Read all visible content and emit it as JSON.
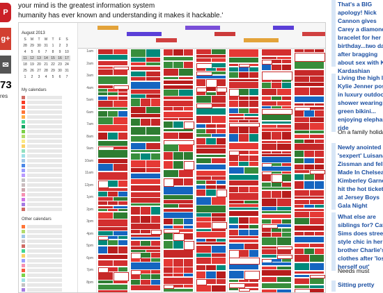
{
  "share": {
    "pin_label": "P",
    "gplus_label": "g+",
    "mail_label": "✉",
    "count": "73",
    "count_label": "res"
  },
  "article": {
    "quote_line1": "your mind is the greatest information system",
    "quote_line2": "humanity has ever known and understanding it makes it hackable.'"
  },
  "calendar": {
    "month_title": "August 2013",
    "weekdays": [
      "S",
      "M",
      "T",
      "W",
      "T",
      "F",
      "S"
    ],
    "weeks": [
      [
        "28",
        "29",
        "30",
        "31",
        "1",
        "2",
        "3"
      ],
      [
        "4",
        "5",
        "6",
        "7",
        "8",
        "9",
        "10"
      ],
      [
        "11",
        "12",
        "13",
        "14",
        "15",
        "16",
        "17"
      ],
      [
        "18",
        "19",
        "20",
        "21",
        "22",
        "23",
        "24"
      ],
      [
        "25",
        "26",
        "27",
        "28",
        "29",
        "30",
        "31"
      ],
      [
        "1",
        "2",
        "3",
        "4",
        "5",
        "6",
        "7"
      ]
    ],
    "my_calendars_label": "My calendars",
    "other_calendars_label": "Other calendars",
    "times": [
      "1am",
      "2am",
      "3am",
      "4am",
      "5am",
      "6am",
      "7am",
      "8am",
      "9am",
      "10am",
      "11am",
      "12pm",
      "1pm",
      "2pm",
      "3pm",
      "4pm",
      "5pm",
      "6pm",
      "7pm",
      "8pm"
    ],
    "calendar_colors": [
      "#d06b64",
      "#f83a22",
      "#fa573c",
      "#ff7537",
      "#ffad46",
      "#42d692",
      "#16a765",
      "#7bd148",
      "#b3dc6c",
      "#fbe983",
      "#fad165",
      "#92e1c0",
      "#9fe1e7",
      "#9fc6e7",
      "#4986e7",
      "#9a9cff",
      "#b99aff",
      "#c2c2c2",
      "#cabdbf",
      "#cca6ac",
      "#f691b2",
      "#cd74e6",
      "#a47ae2"
    ]
  },
  "sidebar": {
    "items": [
      {
        "text": "That's a BIG apology! Nick Cannon gives Carey a diamond bracelet for her birthday...two days after bragging about sex with Kim Kardashian",
        "sub": ""
      },
      {
        "text": "Living the high life: Kylie Jenner poses in luxury outdoor shower wearing green bikini... enjoying elephant ride",
        "sub": "On a family holiday"
      },
      {
        "text": "Newly anointed 'sexpert' Luisana Zissman and fellow Made In Chelsea Kimberley Garner hit the hot tickets at Jersey Boys Gala Night",
        "sub": ""
      },
      {
        "text": "What else are siblings for? Cat Sims does street style chic in her brother Charlie's clothes after 'losing herself out'",
        "sub": "Needs must"
      },
      {
        "text": "Sitting pretty",
        "sub": ""
      }
    ]
  }
}
